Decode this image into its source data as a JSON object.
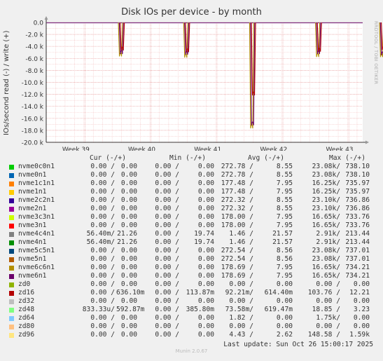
{
  "title": "Disk IOs per device - by month",
  "side_label": "RRDTOOL / TOBI OETIKER",
  "footer": "Munin 2.0.67",
  "last_update": "Last update: Sun Oct 26 15:00:17 2025",
  "legend_headers": {
    "cur": "Cur (-/+)",
    "min": "Min (-/+)",
    "avg": "Avg (-/+)",
    "max": "Max (-/+)"
  },
  "legend": [
    {
      "name": "nvme0c0n1",
      "color": "#00cc00",
      "cur": [
        "0.00 /",
        "0.00"
      ],
      "min": [
        "0.00 /",
        "0.00"
      ],
      "avg": [
        "272.78 /",
        "8.55"
      ],
      "max": [
        "23.08k/",
        "738.10"
      ]
    },
    {
      "name": "nvme0n1",
      "color": "#0066b3",
      "cur": [
        "0.00 /",
        "0.00"
      ],
      "min": [
        "0.00 /",
        "0.00"
      ],
      "avg": [
        "272.78 /",
        "8.55"
      ],
      "max": [
        "23.08k/",
        "738.10"
      ]
    },
    {
      "name": "nvme1c1n1",
      "color": "#ff8000",
      "cur": [
        "0.00 /",
        "0.00"
      ],
      "min": [
        "0.00 /",
        "0.00"
      ],
      "avg": [
        "177.48 /",
        "7.95"
      ],
      "max": [
        "16.25k/",
        "735.97"
      ]
    },
    {
      "name": "nvme1n1",
      "color": "#ffcc00",
      "cur": [
        "0.00 /",
        "0.00"
      ],
      "min": [
        "0.00 /",
        "0.00"
      ],
      "avg": [
        "177.48 /",
        "7.95"
      ],
      "max": [
        "16.25k/",
        "735.97"
      ]
    },
    {
      "name": "nvme2c2n1",
      "color": "#330099",
      "cur": [
        "0.00 /",
        "0.00"
      ],
      "min": [
        "0.00 /",
        "0.00"
      ],
      "avg": [
        "272.32 /",
        "8.55"
      ],
      "max": [
        "23.10k/",
        "736.86"
      ]
    },
    {
      "name": "nvme2n1",
      "color": "#990099",
      "cur": [
        "0.00 /",
        "0.00"
      ],
      "min": [
        "0.00 /",
        "0.00"
      ],
      "avg": [
        "272.32 /",
        "8.55"
      ],
      "max": [
        "23.10k/",
        "736.86"
      ]
    },
    {
      "name": "nvme3c3n1",
      "color": "#ccff00",
      "cur": [
        "0.00 /",
        "0.00"
      ],
      "min": [
        "0.00 /",
        "0.00"
      ],
      "avg": [
        "178.00 /",
        "7.95"
      ],
      "max": [
        "16.65k/",
        "733.76"
      ]
    },
    {
      "name": "nvme3n1",
      "color": "#ff0000",
      "cur": [
        "0.00 /",
        "0.00"
      ],
      "min": [
        "0.00 /",
        "0.00"
      ],
      "avg": [
        "178.00 /",
        "7.95"
      ],
      "max": [
        "16.65k/",
        "733.76"
      ]
    },
    {
      "name": "nvme4c4n1",
      "color": "#808080",
      "cur": [
        "56.40m/",
        "21.26"
      ],
      "min": [
        "0.00 /",
        "19.74"
      ],
      "avg": [
        "1.46 /",
        "21.57"
      ],
      "max": [
        "2.91k/",
        "213.44"
      ]
    },
    {
      "name": "nvme4n1",
      "color": "#008f00",
      "cur": [
        "56.40m/",
        "21.26"
      ],
      "min": [
        "0.00 /",
        "19.74"
      ],
      "avg": [
        "1.46 /",
        "21.57"
      ],
      "max": [
        "2.91k/",
        "213.44"
      ]
    },
    {
      "name": "nvme5c5n1",
      "color": "#00487d",
      "cur": [
        "0.00 /",
        "0.00"
      ],
      "min": [
        "0.00 /",
        "0.00"
      ],
      "avg": [
        "272.54 /",
        "8.56"
      ],
      "max": [
        "23.08k/",
        "737.01"
      ]
    },
    {
      "name": "nvme5n1",
      "color": "#b35a00",
      "cur": [
        "0.00 /",
        "0.00"
      ],
      "min": [
        "0.00 /",
        "0.00"
      ],
      "avg": [
        "272.54 /",
        "8.56"
      ],
      "max": [
        "23.08k/",
        "737.01"
      ]
    },
    {
      "name": "nvme6c6n1",
      "color": "#b38f00",
      "cur": [
        "0.00 /",
        "0.00"
      ],
      "min": [
        "0.00 /",
        "0.00"
      ],
      "avg": [
        "178.69 /",
        "7.95"
      ],
      "max": [
        "16.65k/",
        "734.21"
      ]
    },
    {
      "name": "nvme6n1",
      "color": "#6b006b",
      "cur": [
        "0.00 /",
        "0.00"
      ],
      "min": [
        "0.00 /",
        "0.00"
      ],
      "avg": [
        "178.69 /",
        "7.95"
      ],
      "max": [
        "16.65k/",
        "734.21"
      ]
    },
    {
      "name": "zd0",
      "color": "#8fb300",
      "cur": [
        "0.00 /",
        "0.00"
      ],
      "min": [
        "0.00 /",
        "0.00"
      ],
      "avg": [
        "0.00 /",
        "0.00"
      ],
      "max": [
        "0.00 /",
        "0.00"
      ]
    },
    {
      "name": "zd16",
      "color": "#b30000",
      "cur": [
        "0.00 /",
        "636.10m"
      ],
      "min": [
        "0.00 /",
        "113.87m"
      ],
      "avg": [
        "92.21m/",
        "614.40m"
      ],
      "max": [
        "103.76 /",
        "12.21"
      ]
    },
    {
      "name": "zd32",
      "color": "#bebebe",
      "cur": [
        "0.00 /",
        "0.00"
      ],
      "min": [
        "0.00 /",
        "0.00"
      ],
      "avg": [
        "0.00 /",
        "0.00"
      ],
      "max": [
        "0.00 /",
        "0.00"
      ]
    },
    {
      "name": "zd48",
      "color": "#80ff80",
      "cur": [
        "833.33u/",
        "592.87m"
      ],
      "min": [
        "0.00 /",
        "385.80m"
      ],
      "avg": [
        "73.58m/",
        "619.47m"
      ],
      "max": [
        "18.85 /",
        "3.23"
      ]
    },
    {
      "name": "zd64",
      "color": "#80c9ff",
      "cur": [
        "0.00 /",
        "0.00"
      ],
      "min": [
        "0.00 /",
        "0.00"
      ],
      "avg": [
        "1.82 /",
        "0.00"
      ],
      "max": [
        "1.75k/",
        "0.00"
      ]
    },
    {
      "name": "zd80",
      "color": "#ffc080",
      "cur": [
        "0.00 /",
        "0.00"
      ],
      "min": [
        "0.00 /",
        "0.00"
      ],
      "avg": [
        "0.00 /",
        "0.00"
      ],
      "max": [
        "0.00 /",
        "0.00"
      ]
    },
    {
      "name": "zd96",
      "color": "#ffe680",
      "cur": [
        "0.00 /",
        "0.00"
      ],
      "min": [
        "0.00 /",
        "0.00"
      ],
      "avg": [
        "4.43 /",
        "2.62"
      ],
      "max": [
        "148.58 /",
        "1.59k"
      ]
    }
  ],
  "chart_data": {
    "type": "line",
    "title": "Disk IOs per device - by month",
    "ylabel": "IOs/second read (-) / write (+)",
    "xlabel": "",
    "ylim": [
      -20000,
      0
    ],
    "y_ticks": [
      "0.0",
      "-2.0 k",
      "-4.0 k",
      "-6.0 k",
      "-8.0 k",
      "-10.0 k",
      "-12.0 k",
      "-14.0 k",
      "-16.0 k",
      "-18.0 k",
      "-20.0 k"
    ],
    "x_ticks": [
      "Week 39",
      "Week 40",
      "Week 41",
      "Week 42",
      "Week 43"
    ],
    "grid": true,
    "spikes": [
      {
        "x": 1.69,
        "depths": [
          -4500,
          -4100,
          -3500
        ]
      },
      {
        "x": 2.68,
        "depths": [
          -4700,
          -4200,
          -3800
        ]
      },
      {
        "x": 3.68,
        "depths": [
          -16500,
          -16000,
          -11000
        ]
      },
      {
        "x": 4.68,
        "depths": [
          -4600,
          -4100,
          -3700
        ]
      },
      {
        "x": 5.65,
        "depths": [
          -4600,
          -4300,
          -3400
        ]
      }
    ]
  }
}
